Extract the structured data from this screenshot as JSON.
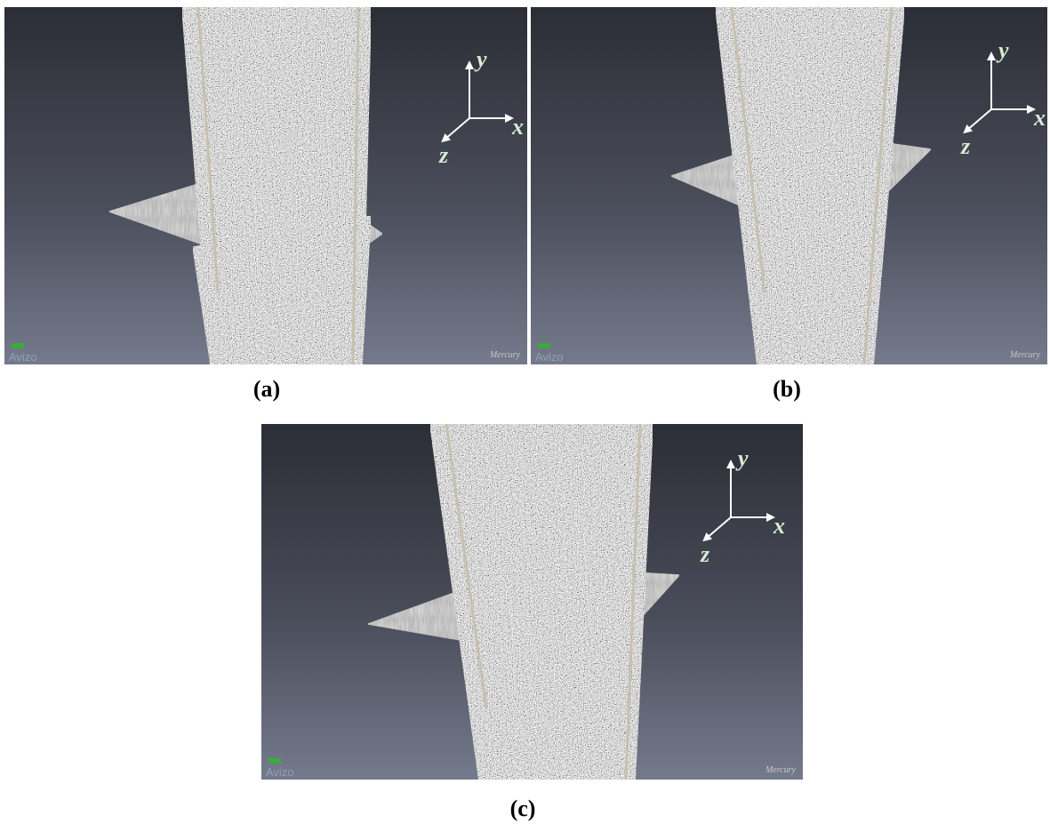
{
  "panels": [
    {
      "caption": "(a)",
      "axis_y": "y",
      "axis_x": "x",
      "axis_z": "z",
      "logo_left": "Avizo",
      "logo_right": "Mercury"
    },
    {
      "caption": "(b)",
      "axis_y": "y",
      "axis_x": "x",
      "axis_z": "z",
      "logo_left": "Avizo",
      "logo_right": "Mercury"
    },
    {
      "caption": "(c)",
      "axis_y": "y",
      "axis_x": "x",
      "axis_z": "z",
      "logo_left": "Avizo",
      "logo_right": "Mercury"
    }
  ]
}
